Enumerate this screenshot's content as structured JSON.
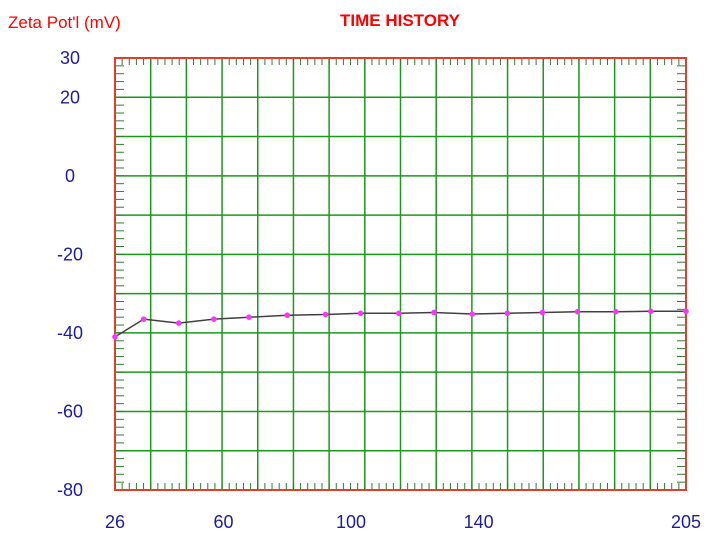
{
  "colors": {
    "frame": "#e0402a",
    "grid": "#1a9a1a",
    "minor_tick": "#2e7d2e",
    "tick_label": "#1c1c9c",
    "title": "#ff0000",
    "ylabel": "#ff0000",
    "line": "#404040",
    "marker": "#ff33ff",
    "background": "#ffffff"
  },
  "chart_data": {
    "type": "line",
    "title": "TIME HISTORY",
    "ylabel": "Zeta Pot'l (mV)",
    "xlabel": "",
    "xlim": [
      26,
      205
    ],
    "ylim": [
      -80,
      30
    ],
    "x_ticks": [
      "26",
      "60",
      "100",
      "140",
      "205"
    ],
    "y_ticks": [
      "30",
      "20",
      "0",
      "-20",
      "-40",
      "-60",
      "-80"
    ],
    "grid": true,
    "series": [
      {
        "x": [
          26,
          35,
          46,
          57,
          68,
          80,
          92,
          103,
          115,
          126,
          138,
          149,
          160,
          171,
          183,
          194,
          205
        ],
        "y": [
          -41,
          -36.5,
          -37.5,
          -36.5,
          -36,
          -35.5,
          -35.3,
          -35,
          -35,
          -34.8,
          -35.2,
          -35,
          -34.8,
          -34.6,
          -34.6,
          -34.5,
          -34.5
        ]
      }
    ]
  }
}
